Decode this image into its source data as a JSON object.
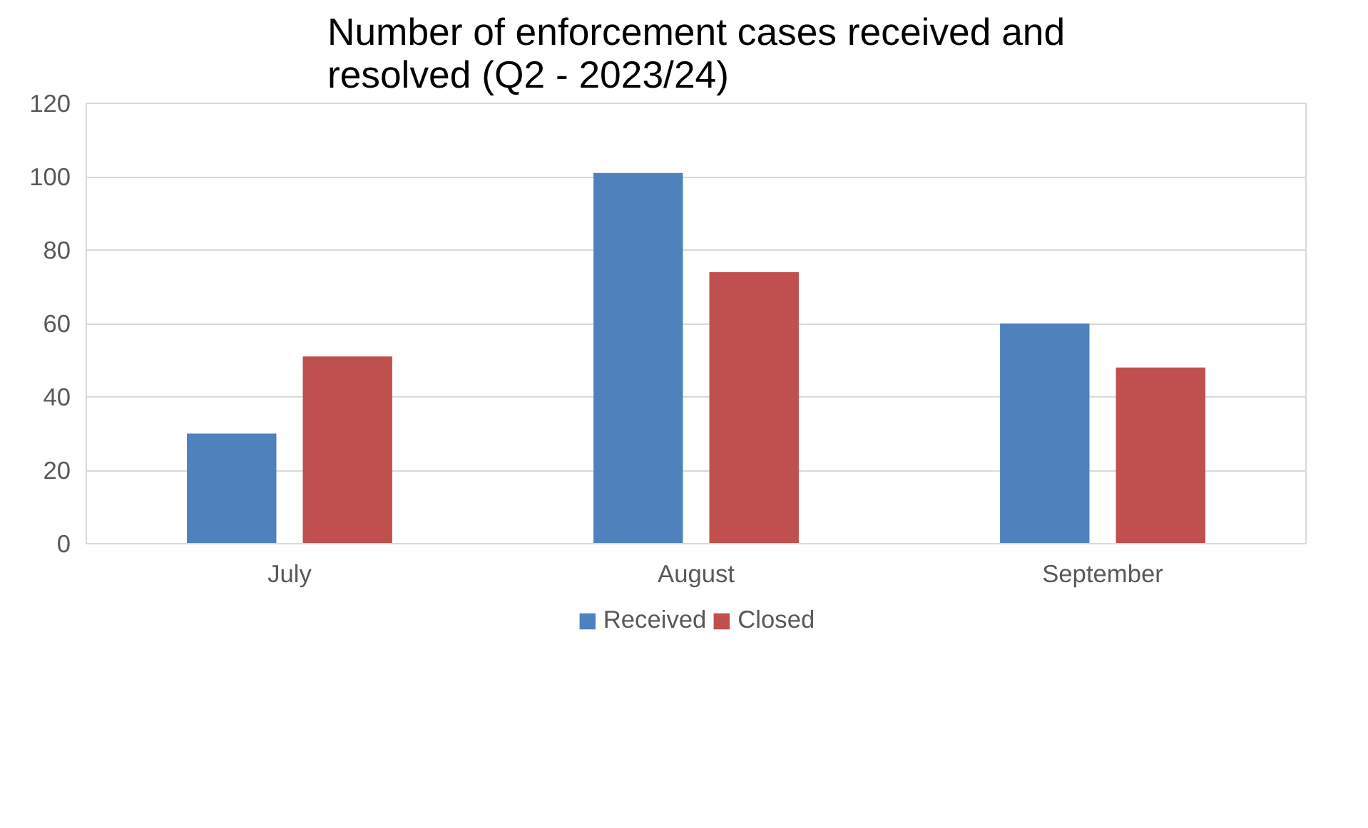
{
  "chart_data": {
    "type": "bar",
    "title": "Number of enforcement cases received and resolved (Q2 - 2023/24)",
    "categories": [
      "July",
      "August",
      "September"
    ],
    "series": [
      {
        "name": "Received",
        "color": "#4f81bd",
        "values": [
          30,
          101,
          60
        ]
      },
      {
        "name": "Closed",
        "color": "#c0504d",
        "values": [
          51,
          74,
          48
        ]
      }
    ],
    "ylim": [
      0,
      120
    ],
    "yticks": [
      0,
      20,
      40,
      60,
      80,
      100,
      120
    ],
    "grid": "y",
    "legend": "bottom"
  }
}
